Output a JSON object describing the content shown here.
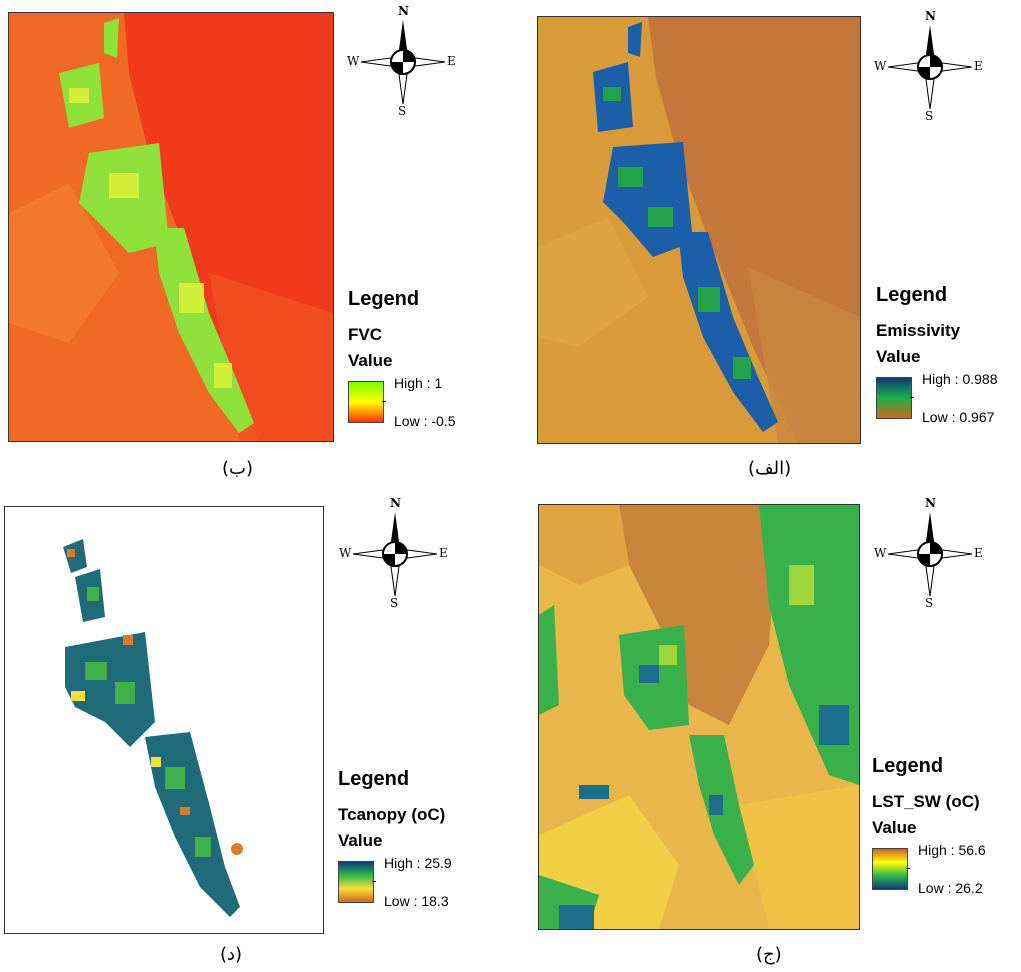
{
  "panels": [
    {
      "id": "fvc",
      "caption": "(ب)",
      "legend_title": "Legend",
      "layer": "FVC",
      "value_label": "Value",
      "high": "High : 1",
      "low": "Low : -0.5",
      "ramp_colors": [
        "#7fff00",
        "#ffff00",
        "#ff3300"
      ]
    },
    {
      "id": "emissivity",
      "caption": "(الف)",
      "legend_title": "Legend",
      "layer": "Emissivity",
      "value_label": "Value",
      "high": "High : 0.988",
      "low": "Low : 0.967",
      "ramp_colors": [
        "#0b3d7a",
        "#19b04a",
        "#d2691e"
      ]
    },
    {
      "id": "tcanopy",
      "caption": "(د)",
      "legend_title": "Legend",
      "layer": "Tcanopy (oC)",
      "value_label": "Value",
      "high": "High : 25.9",
      "low": "Low : 18.3",
      "ramp_colors": [
        "#0b3d7a",
        "#2fb84a",
        "#d2691e"
      ]
    },
    {
      "id": "lst",
      "caption": "(ج)",
      "legend_title": "Legend",
      "layer": "LST_SW (oC)",
      "value_label": "Value",
      "high": "High : 56.6",
      "low": "Low : 26.2",
      "ramp_colors": [
        "#c8602a",
        "#ffff00",
        "#0b3d7a"
      ]
    }
  ],
  "compass": {
    "n": "N",
    "s": "S",
    "e": "E",
    "w": "W"
  }
}
